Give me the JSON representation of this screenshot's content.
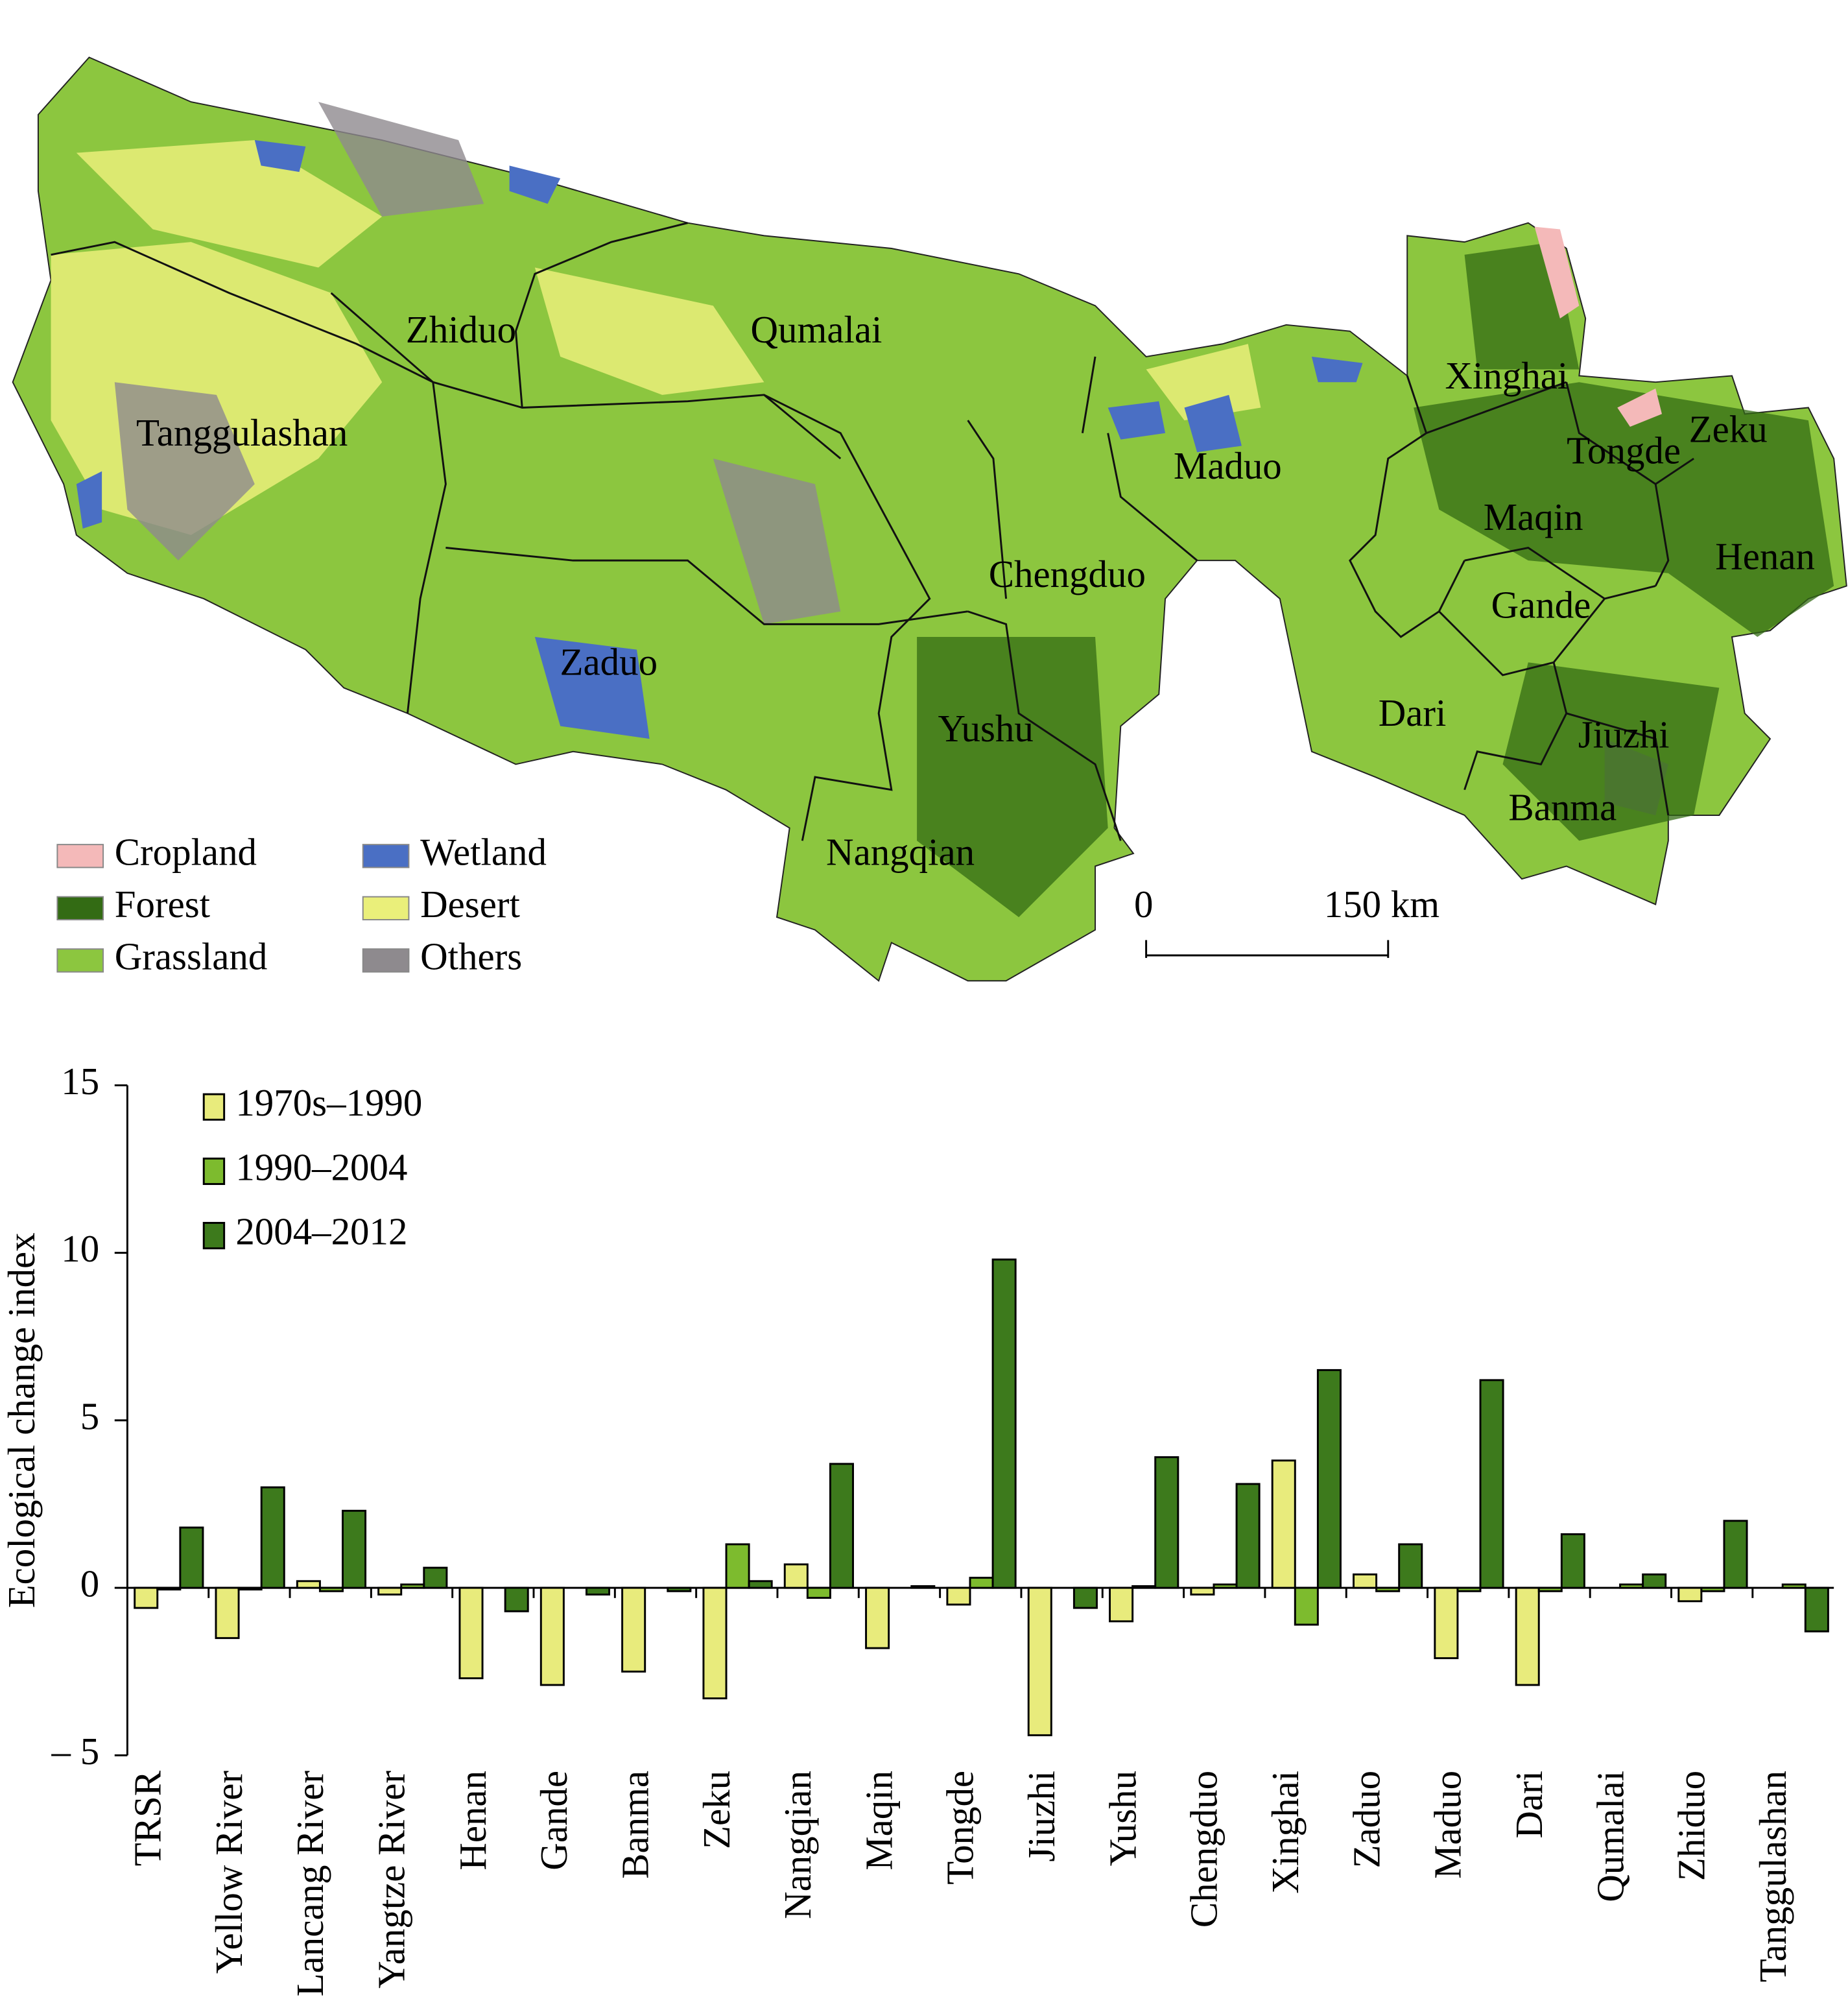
{
  "map": {
    "regions": [
      "Zhiduo",
      "Qumalai",
      "Tanggulashan",
      "Maduo",
      "Xinghai",
      "Tongde",
      "Zeku",
      "Maqin",
      "Henan",
      "Chengduo",
      "Gande",
      "Zaduo",
      "Yushu",
      "Dari",
      "Jiuzhi",
      "Banma",
      "Nangqian"
    ],
    "legend": [
      {
        "name": "Cropland",
        "color": "#f4b9b9"
      },
      {
        "name": "Forest",
        "color": "#336b14"
      },
      {
        "name": "Grassland",
        "color": "#8cc63f"
      },
      {
        "name": "Wetland",
        "color": "#4a6fc4"
      },
      {
        "name": "Desert",
        "color": "#eaef7a"
      },
      {
        "name": "Others",
        "color": "#8e8a8e"
      }
    ],
    "scale": [
      "0",
      "150 km"
    ]
  },
  "chart_data": {
    "type": "bar",
    "ylabel": "Ecological change index",
    "categories": [
      "TRSR",
      "Yellow River",
      "Lancang River",
      "Yangtze River",
      "Henan",
      "Gande",
      "Banma",
      "Zeku",
      "Nangqian",
      "Maqin",
      "Tongde",
      "Jiuzhi",
      "Yushu",
      "Chengduo",
      "Xinghai",
      "Zaduo",
      "Maduo",
      "Dari",
      "Qumalai",
      "Zhiduo",
      "Tanggulashan"
    ],
    "series": [
      {
        "name": "1970s–1990",
        "color": "#e8eb7c",
        "values": [
          -0.6,
          -1.5,
          0.2,
          -0.2,
          -2.7,
          -2.9,
          -2.5,
          -3.3,
          0.7,
          -1.8,
          -0.5,
          -4.4,
          -1.0,
          -0.2,
          3.8,
          0.4,
          -2.1,
          -2.9,
          0,
          -0.4,
          0
        ]
      },
      {
        "name": "1990–2004",
        "color": "#7dbb2e",
        "values": [
          -0.05,
          -0.05,
          -0.1,
          0.1,
          0,
          0,
          0,
          1.3,
          -0.3,
          0,
          0.3,
          0,
          0.05,
          0.1,
          -1.1,
          -0.1,
          -0.1,
          -0.1,
          0.1,
          -0.1,
          0.1
        ]
      },
      {
        "name": "2004–2012",
        "color": "#3d7a1c",
        "values": [
          1.8,
          3.0,
          2.3,
          0.6,
          -0.7,
          -0.2,
          -0.1,
          0.2,
          3.7,
          0.05,
          9.8,
          -0.6,
          3.9,
          3.1,
          6.5,
          1.3,
          6.2,
          1.6,
          0.4,
          2.0,
          -1.3
        ]
      }
    ],
    "ylim": [
      -5,
      15
    ],
    "yticks": [
      {
        "value": -5,
        "label": "– 5"
      },
      0,
      5,
      10,
      15
    ],
    "legend": "upper left"
  }
}
